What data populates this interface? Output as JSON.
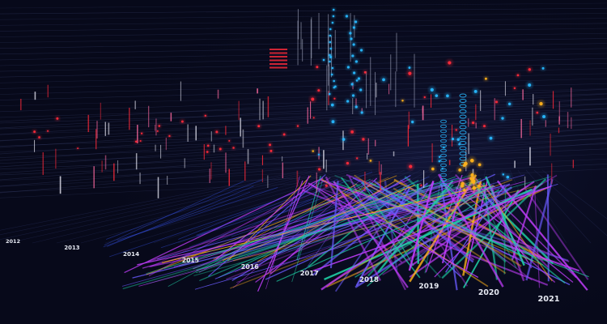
{
  "palette": {
    "background": "#07091a",
    "grid_line": "#2c3358",
    "cyan": "#28b8ff",
    "magenta": "#c43dff",
    "teal": "#1fd1a6",
    "red": "#ff2a3a",
    "amber": "#ffb21a",
    "label": "#e6e9f2"
  },
  "timeline": {
    "years": [
      "2012",
      "2013",
      "2014",
      "2015",
      "2016",
      "2017",
      "2018",
      "2019",
      "2020",
      "2021"
    ]
  }
}
